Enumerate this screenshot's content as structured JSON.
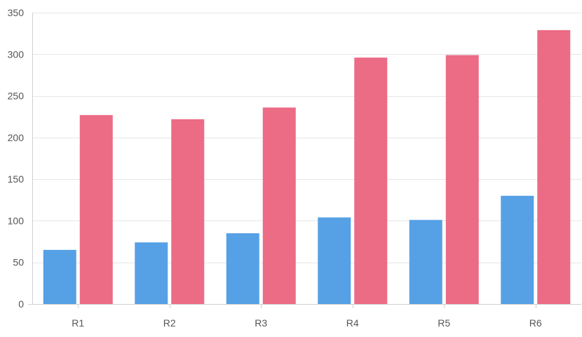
{
  "chart_data": {
    "type": "bar",
    "categories": [
      "R1",
      "R2",
      "R3",
      "R4",
      "R5",
      "R6"
    ],
    "series": [
      {
        "values": [
          65,
          74,
          85,
          104,
          101,
          130
        ],
        "color": "#56a0e5"
      },
      {
        "values": [
          227,
          222,
          236,
          296,
          299,
          329
        ],
        "color": "#ec6c85"
      }
    ],
    "title": "",
    "xlabel": "",
    "ylabel": "",
    "ylim": [
      0,
      350
    ],
    "yticks": [
      0,
      50,
      100,
      150,
      200,
      250,
      300,
      350
    ],
    "grid": true,
    "legend": "none"
  }
}
